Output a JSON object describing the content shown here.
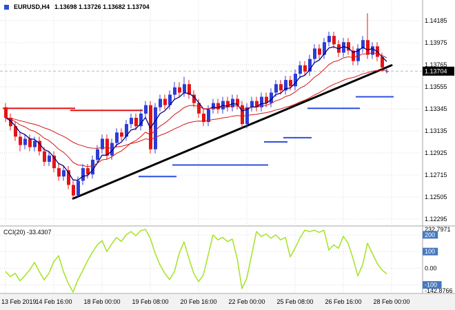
{
  "header": {
    "symbol_period": "EURUSD,H4",
    "ohlc_values": "1.13698 1.13726 1.13682 1.13704",
    "open": "1.13698",
    "high": "1.13726",
    "low": "1.13682",
    "close": "1.13704"
  },
  "colors": {
    "bull": "#2b3cd9",
    "bear": "#e41414",
    "ma_fast": "#000080",
    "ma_red": "#d21616",
    "trend": "#000000",
    "support": "#2d4fe0",
    "resistance": "#e41414",
    "cci": "#a8e42f",
    "badge_bg": "#4679c0",
    "badge_fg": "#ffffff",
    "price_box_bg": "#000000",
    "price_box_fg": "#ffffff",
    "grid": "#d9d9d9",
    "separator": "#a3a3a3",
    "axis_text": "#000000",
    "bid_line": "#b8b8b8",
    "time_strip_bg": "#f2f2f2"
  },
  "price_axis": {
    "labels": [
      "1.14185",
      "1.13975",
      "1.13765",
      "1.13555",
      "1.13345",
      "1.13135",
      "1.12925",
      "1.12715",
      "1.12505",
      "1.12295"
    ],
    "current": "1.13704"
  },
  "time_axis": {
    "labels": [
      "13 Feb 2019",
      "14 Feb 16:00",
      "18 Feb 00:00",
      "19 Feb 08:00",
      "20 Feb 16:00",
      "22 Feb 00:00",
      "25 Feb 08:00",
      "26 Feb 16:00",
      "28 Feb 00:00"
    ]
  },
  "subwindow": {
    "label": "CCI(20) -33.4307",
    "indicator": "CCI",
    "period": 20,
    "current_value": -33.4307,
    "max_label": "232.7971",
    "min_label": "-142.8766",
    "zero_label": "0.00",
    "level_badges": [
      "200",
      "100",
      "-100"
    ]
  },
  "chart_data": {
    "type": "candlestick",
    "symbol": "EURUSD",
    "timeframe": "H4",
    "price_axis": {
      "top": 1.14185,
      "step": 0.0021,
      "count": 10
    },
    "grid_every_bars": 10,
    "candles": [
      [
        1.1336,
        1.134,
        1.1322,
        1.1326
      ],
      [
        1.1326,
        1.133,
        1.1314,
        1.1318
      ],
      [
        1.1318,
        1.1322,
        1.1304,
        1.1308
      ],
      [
        1.1308,
        1.1312,
        1.1294,
        1.13
      ],
      [
        1.13,
        1.131,
        1.1296,
        1.1306
      ],
      [
        1.1306,
        1.131,
        1.1294,
        1.1298
      ],
      [
        1.1298,
        1.1308,
        1.1294,
        1.1304
      ],
      [
        1.1304,
        1.1308,
        1.129,
        1.1294
      ],
      [
        1.1294,
        1.1298,
        1.128,
        1.1284
      ],
      [
        1.1284,
        1.1294,
        1.128,
        1.129
      ],
      [
        1.129,
        1.1294,
        1.1274,
        1.1278
      ],
      [
        1.1278,
        1.1282,
        1.1266,
        1.127
      ],
      [
        1.127,
        1.128,
        1.1266,
        1.1276
      ],
      [
        1.1276,
        1.128,
        1.1258,
        1.1262
      ],
      [
        1.1262,
        1.1266,
        1.1248,
        1.1252
      ],
      [
        1.1252,
        1.127,
        1.125,
        1.1266
      ],
      [
        1.1266,
        1.1282,
        1.1262,
        1.1278
      ],
      [
        1.1278,
        1.1282,
        1.1268,
        1.1272
      ],
      [
        1.1272,
        1.129,
        1.1268,
        1.1286
      ],
      [
        1.1286,
        1.13,
        1.1282,
        1.1296
      ],
      [
        1.1296,
        1.131,
        1.1292,
        1.1306
      ],
      [
        1.1306,
        1.131,
        1.1286,
        1.129
      ],
      [
        1.129,
        1.1306,
        1.1286,
        1.1302
      ],
      [
        1.1302,
        1.1316,
        1.1298,
        1.1312
      ],
      [
        1.1312,
        1.1316,
        1.1304,
        1.1308
      ],
      [
        1.1308,
        1.1324,
        1.1304,
        1.132
      ],
      [
        1.132,
        1.133,
        1.1316,
        1.1326
      ],
      [
        1.1326,
        1.133,
        1.1314,
        1.1318
      ],
      [
        1.1318,
        1.1334,
        1.1314,
        1.133
      ],
      [
        1.133,
        1.1342,
        1.1326,
        1.1338
      ],
      [
        1.1338,
        1.1342,
        1.1292,
        1.1296
      ],
      [
        1.1296,
        1.134,
        1.1292,
        1.1336
      ],
      [
        1.1336,
        1.1348,
        1.1332,
        1.1344
      ],
      [
        1.1344,
        1.1348,
        1.1334,
        1.1338
      ],
      [
        1.1338,
        1.1352,
        1.1334,
        1.1348
      ],
      [
        1.1348,
        1.136,
        1.1344,
        1.1355
      ],
      [
        1.1355,
        1.136,
        1.1346,
        1.135
      ],
      [
        1.135,
        1.1365,
        1.1346,
        1.1358
      ],
      [
        1.1358,
        1.1362,
        1.1344,
        1.1348
      ],
      [
        1.1348,
        1.1352,
        1.1336,
        1.134
      ],
      [
        1.134,
        1.1344,
        1.1326,
        1.133
      ],
      [
        1.133,
        1.1334,
        1.1318,
        1.1322
      ],
      [
        1.1322,
        1.1338,
        1.1318,
        1.1334
      ],
      [
        1.1334,
        1.1344,
        1.133,
        1.134
      ],
      [
        1.134,
        1.1344,
        1.133,
        1.1334
      ],
      [
        1.1334,
        1.1346,
        1.133,
        1.1342
      ],
      [
        1.1342,
        1.1346,
        1.1332,
        1.1336
      ],
      [
        1.1336,
        1.1348,
        1.1332,
        1.1344
      ],
      [
        1.1344,
        1.1348,
        1.1334,
        1.1338
      ],
      [
        1.1338,
        1.1342,
        1.1316,
        1.132
      ],
      [
        1.132,
        1.134,
        1.1316,
        1.1336
      ],
      [
        1.1336,
        1.1346,
        1.1332,
        1.1342
      ],
      [
        1.1342,
        1.1346,
        1.1332,
        1.1336
      ],
      [
        1.1336,
        1.135,
        1.1332,
        1.1346
      ],
      [
        1.1346,
        1.135,
        1.1336,
        1.134
      ],
      [
        1.134,
        1.1354,
        1.1336,
        1.135
      ],
      [
        1.135,
        1.1362,
        1.1346,
        1.1358
      ],
      [
        1.1358,
        1.1362,
        1.1348,
        1.1352
      ],
      [
        1.1352,
        1.1366,
        1.1348,
        1.1362
      ],
      [
        1.1362,
        1.1366,
        1.1352,
        1.1356
      ],
      [
        1.1356,
        1.1372,
        1.1352,
        1.1368
      ],
      [
        1.1368,
        1.138,
        1.1364,
        1.1376
      ],
      [
        1.1376,
        1.138,
        1.1366,
        1.137
      ],
      [
        1.137,
        1.1386,
        1.1366,
        1.1382
      ],
      [
        1.1382,
        1.1396,
        1.1378,
        1.1392
      ],
      [
        1.1392,
        1.1396,
        1.1382,
        1.1386
      ],
      [
        1.1386,
        1.1402,
        1.1382,
        1.1398
      ],
      [
        1.1398,
        1.1408,
        1.1394,
        1.1404
      ],
      [
        1.1404,
        1.1408,
        1.1392,
        1.1396
      ],
      [
        1.1396,
        1.14,
        1.1384,
        1.1388
      ],
      [
        1.1388,
        1.1402,
        1.1384,
        1.1398
      ],
      [
        1.1398,
        1.1402,
        1.1386,
        1.139
      ],
      [
        1.139,
        1.1394,
        1.1376,
        1.138
      ],
      [
        1.138,
        1.1396,
        1.1376,
        1.1392
      ],
      [
        1.1392,
        1.1404,
        1.1388,
        1.14
      ],
      [
        1.14,
        1.14255,
        1.1382,
        1.1386
      ],
      [
        1.1386,
        1.1398,
        1.1382,
        1.1394
      ],
      [
        1.1394,
        1.1398,
        1.138,
        1.1384
      ],
      [
        1.1384,
        1.1388,
        1.137,
        1.1374
      ],
      [
        1.13698,
        1.13726,
        1.13682,
        1.13704
      ]
    ],
    "overlays": {
      "trendline": {
        "from_bar": 14,
        "from_price": 1.1249,
        "to_bar": 80,
        "to_price": 1.1376
      },
      "resistance_steps": [
        {
          "from": 0,
          "to": 14,
          "price": 1.1335
        },
        {
          "from": 14,
          "to": 28,
          "price": 1.1333
        }
      ],
      "support_steps": [
        {
          "from": 28,
          "to": 35,
          "price": 1.127
        },
        {
          "from": 35,
          "to": 54,
          "price": 1.1281
        },
        {
          "from": 54,
          "to": 58,
          "price": 1.1303
        },
        {
          "from": 58,
          "to": 63,
          "price": 1.1307
        },
        {
          "from": 63,
          "to": 73,
          "price": 1.1335
        },
        {
          "from": 73,
          "to": 80,
          "price": 1.1346
        }
      ],
      "moving_averages": [
        {
          "period": 5,
          "color": "#000080"
        },
        {
          "period": 13,
          "color": "#d21616"
        },
        {
          "period": 34,
          "color": "#d21616"
        }
      ]
    },
    "indicator": {
      "name": "CCI",
      "period": 20,
      "max": 232.7971,
      "min": -142.8766,
      "levels": [
        200,
        100,
        0,
        -100
      ],
      "values": [
        -20,
        -50,
        -30,
        -75,
        -45,
        -10,
        35,
        -20,
        -70,
        -30,
        40,
        75,
        -20,
        -90,
        -142.8766,
        -70,
        -15,
        45,
        95,
        140,
        165,
        100,
        145,
        185,
        160,
        200,
        220,
        195,
        225,
        232.7971,
        180,
        90,
        20,
        -30,
        -68,
        -20,
        90,
        158,
        60,
        -30,
        -81,
        -40,
        80,
        200,
        170,
        185,
        160,
        175,
        60,
        -122,
        -60,
        80,
        220,
        190,
        205,
        180,
        200,
        170,
        185,
        68,
        120,
        180,
        228,
        220,
        228,
        215,
        228,
        109,
        140,
        120,
        191,
        150,
        60,
        -45,
        20,
        150,
        90,
        30,
        -10,
        -33.4307
      ]
    }
  }
}
